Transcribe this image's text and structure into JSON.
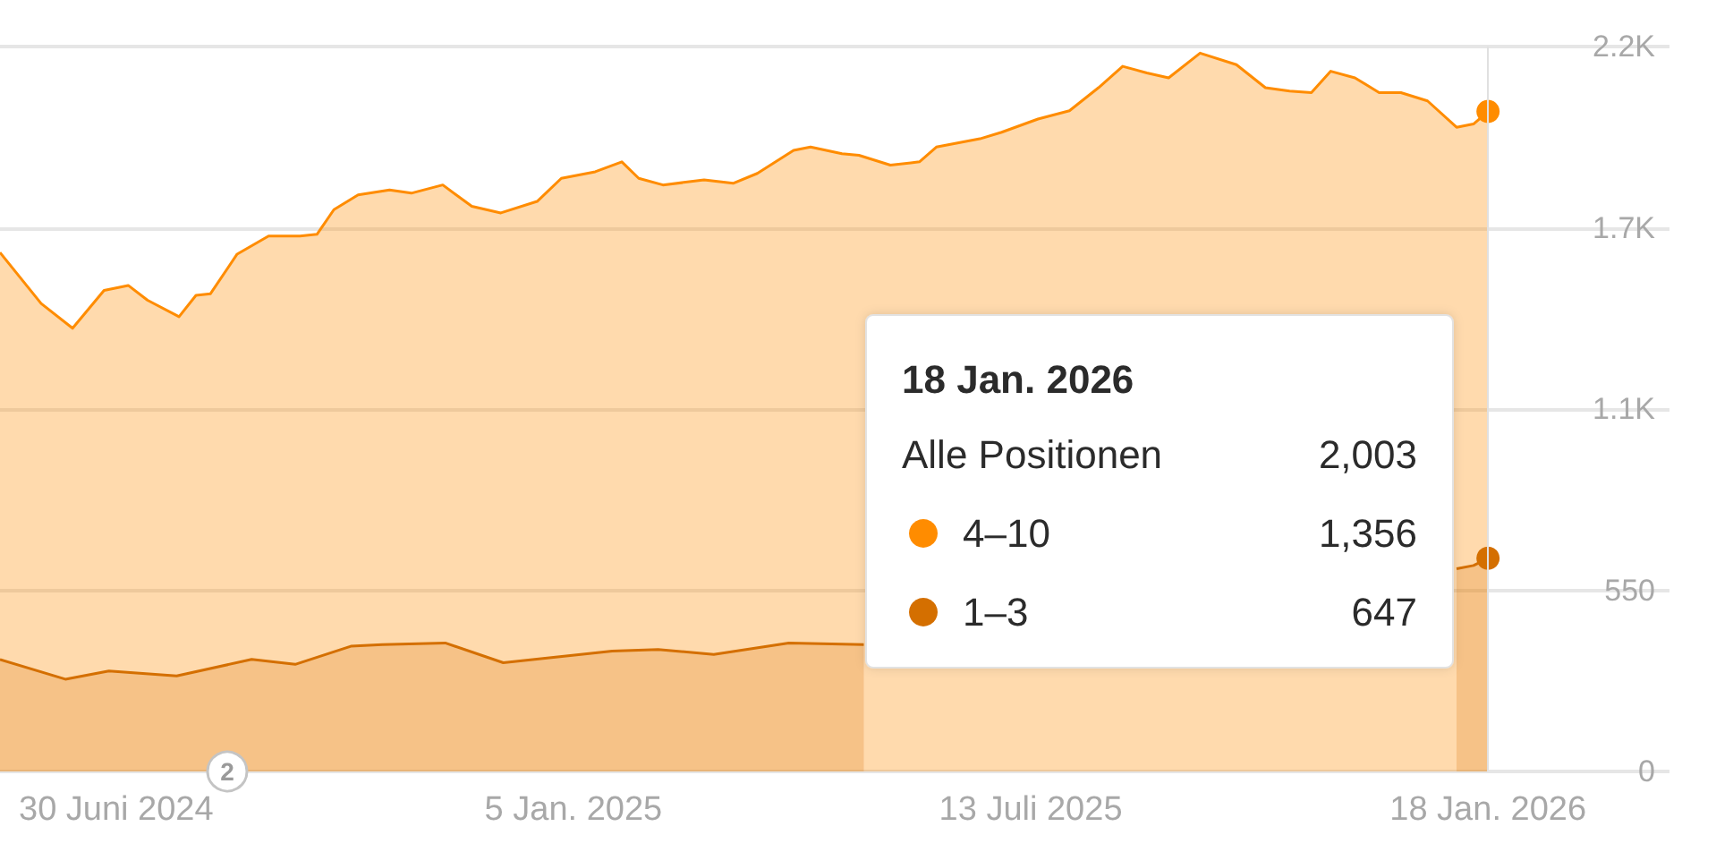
{
  "chart_data": {
    "type": "area",
    "series": [
      {
        "name": "Alle Positionen",
        "color": "#ff8c00",
        "x": [
          "2024-05-13",
          "2024-05-30",
          "2024-06-12",
          "2024-06-25",
          "2024-07-05",
          "2024-07-13",
          "2024-07-26",
          "2024-08-02",
          "2024-08-08",
          "2024-08-19",
          "2024-09-01",
          "2024-09-14",
          "2024-09-21",
          "2024-09-28",
          "2024-10-08",
          "2024-10-21",
          "2024-10-30",
          "2024-11-12",
          "2024-11-24",
          "2024-12-06",
          "2024-12-21",
          "2024-12-31",
          "2025-01-14",
          "2025-01-25",
          "2025-02-01",
          "2025-02-11",
          "2025-02-28",
          "2025-03-12",
          "2025-03-22",
          "2025-04-06",
          "2025-04-13",
          "2025-04-26",
          "2025-05-03",
          "2025-05-16",
          "2025-05-28",
          "2025-06-04",
          "2025-06-22",
          "2025-07-01",
          "2025-07-16",
          "2025-07-29",
          "2025-08-10",
          "2025-08-20",
          "2025-08-30",
          "2025-09-08",
          "2025-09-21",
          "2025-10-06",
          "2025-10-18",
          "2025-10-28",
          "2025-11-06",
          "2025-11-14",
          "2025-11-24",
          "2025-12-04",
          "2025-12-13",
          "2025-12-24",
          "2026-01-05",
          "2026-01-12",
          "2026-01-18"
        ],
        "values": [
          1575,
          1420,
          1345,
          1460,
          1475,
          1430,
          1380,
          1445,
          1450,
          1570,
          1625,
          1625,
          1630,
          1705,
          1750,
          1765,
          1755,
          1780,
          1715,
          1695,
          1730,
          1800,
          1820,
          1850,
          1800,
          1780,
          1795,
          1785,
          1815,
          1885,
          1895,
          1875,
          1870,
          1840,
          1850,
          1895,
          1920,
          1940,
          1980,
          2005,
          2075,
          2140,
          2120,
          2105,
          2180,
          2145,
          2075,
          2065,
          2060,
          2125,
          2105,
          2060,
          2060,
          2035,
          1955,
          1965,
          2003
        ]
      },
      {
        "name": "1–3",
        "color": "#d46f00",
        "x": [
          "2024-05-13",
          "2024-06-09",
          "2024-06-27",
          "2024-07-25",
          "2024-08-25",
          "2024-09-12",
          "2024-10-05",
          "2024-10-18",
          "2024-11-13",
          "2024-12-07",
          "2025-01-21",
          "2025-02-09",
          "2025-03-04",
          "2025-04-04",
          "2025-05-05",
          "2025-09-01",
          "2026-01-05",
          "2026-01-12",
          "2026-01-18"
        ],
        "values": [
          340,
          280,
          305,
          290,
          340,
          325,
          380,
          385,
          390,
          330,
          365,
          370,
          355,
          390,
          385,
          null,
          615,
          625,
          647
        ]
      }
    ],
    "xlim": [
      "2024-05-13",
      "2026-04-03"
    ],
    "xticks": [
      {
        "value": "2024-06-30",
        "label": "30 Juni 2024"
      },
      {
        "value": "2025-01-05",
        "label": "5 Jan. 2025"
      },
      {
        "value": "2025-07-13",
        "label": "13 Juli 2025"
      },
      {
        "value": "2026-01-18",
        "label": "18 Jan. 2026"
      }
    ],
    "ylim": [
      0,
      2200
    ],
    "yticks": [
      0,
      550,
      {
        "value": 1100,
        "label": "1.1K"
      },
      {
        "value": 1650,
        "label": "1.7K"
      },
      {
        "value": 2200,
        "label": "2.2K"
      }
    ],
    "grid": "y",
    "ref_lines": [
      {
        "axis": "x",
        "value": "2026-01-18",
        "color": "#e0e0e0"
      }
    ],
    "annotations": [
      "18 Jan. 2026",
      "2,003",
      "4–10",
      "1,356",
      "647",
      "2"
    ]
  }
}
